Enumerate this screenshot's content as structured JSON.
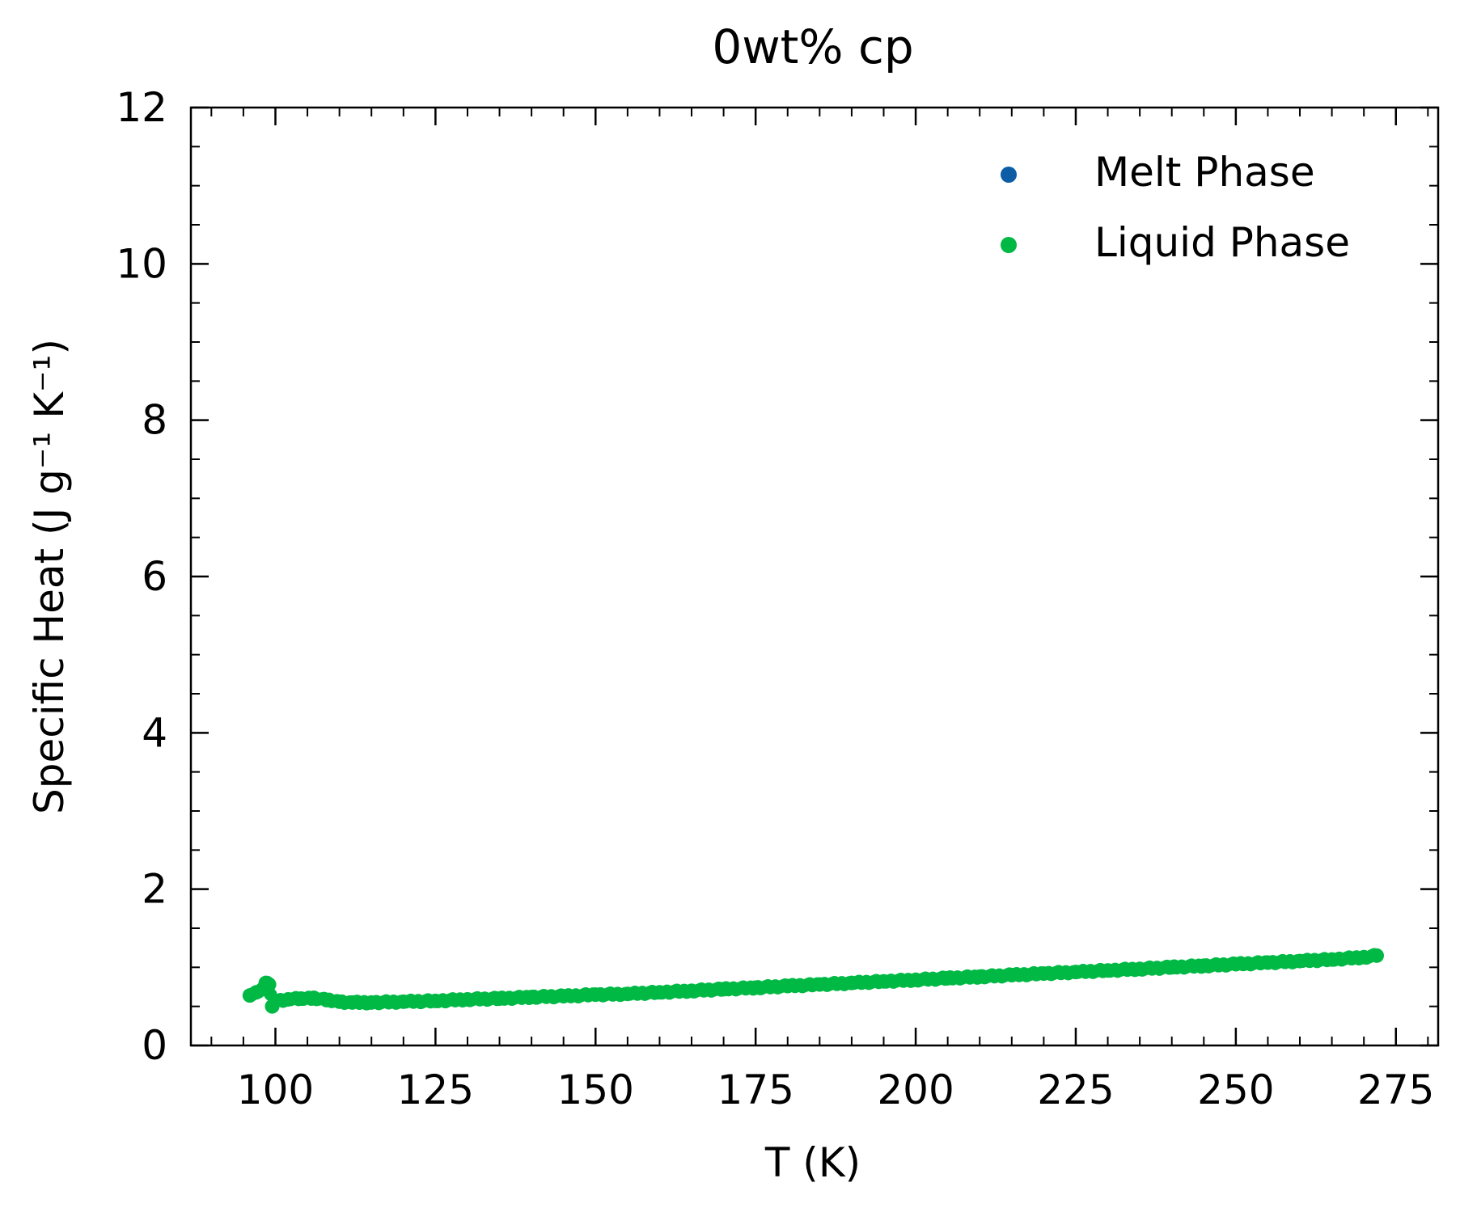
{
  "chart_data": {
    "type": "scatter",
    "title": "0wt% cp",
    "xlabel": "T (K)",
    "ylabel": "Specific Heat (J g⁻¹ K⁻¹)",
    "xlim": [
      86.8,
      281.6
    ],
    "ylim": [
      0,
      12
    ],
    "xticks": [
      100,
      125,
      150,
      175,
      200,
      225,
      250,
      275
    ],
    "yticks": [
      0,
      2,
      4,
      6,
      8,
      10,
      12
    ],
    "grid": false,
    "legend_position": "top-right",
    "series": [
      {
        "name": "Melt Phase",
        "color": "#0c5da5",
        "x": [],
        "y": []
      },
      {
        "name": "Liquid Phase",
        "color": "#00b945",
        "x": [
          96,
          97,
          98,
          98.5,
          99,
          99.5,
          100,
          102,
          104,
          106,
          108,
          110,
          112,
          115,
          120,
          125,
          130,
          135,
          140,
          145,
          150,
          155,
          160,
          165,
          170,
          175,
          180,
          185,
          190,
          195,
          200,
          205,
          210,
          215,
          220,
          225,
          230,
          235,
          240,
          245,
          250,
          255,
          260,
          265,
          270,
          272
        ],
        "y": [
          0.64,
          0.68,
          0.72,
          0.8,
          0.78,
          0.5,
          0.57,
          0.59,
          0.6,
          0.61,
          0.58,
          0.56,
          0.55,
          0.55,
          0.56,
          0.57,
          0.59,
          0.6,
          0.62,
          0.63,
          0.65,
          0.66,
          0.68,
          0.7,
          0.72,
          0.74,
          0.76,
          0.78,
          0.8,
          0.82,
          0.84,
          0.86,
          0.88,
          0.9,
          0.92,
          0.94,
          0.96,
          0.98,
          1.0,
          1.02,
          1.04,
          1.06,
          1.08,
          1.1,
          1.13,
          1.15
        ]
      }
    ]
  }
}
